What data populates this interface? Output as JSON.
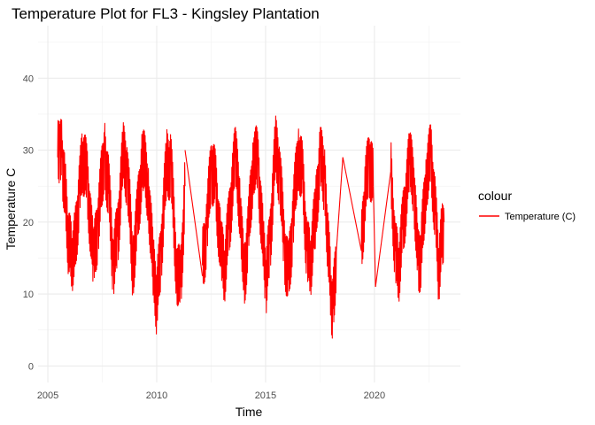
{
  "chart_data": {
    "type": "line",
    "title": "Temperature Plot for FL3 - Kingsley Plantation",
    "xlabel": "Time",
    "ylabel": "Temperature C",
    "xlim": [
      2004.55,
      2023.95
    ],
    "ylim": [
      -2.3,
      47.3
    ],
    "x_ticks": [
      2005,
      2010,
      2015,
      2020
    ],
    "y_ticks": [
      0,
      10,
      20,
      30,
      40
    ],
    "grid": true,
    "legend": {
      "title": "colour",
      "position": "right",
      "entries": [
        {
          "label": "Temperature (C)",
          "color": "#FF0000"
        }
      ]
    },
    "series": [
      {
        "name": "Temperature (C)",
        "color": "#FF0000",
        "daily_fluctuation_c": 5,
        "segments": [
          {
            "x": [
              2005.45,
              2005.55,
              2005.65,
              2005.8,
              2005.95,
              2006.1,
              2006.25,
              2006.45,
              2006.6,
              2006.8,
              2007.1,
              2007.3,
              2007.6,
              2007.8,
              2008.0,
              2008.2,
              2008.45,
              2008.65,
              2008.9,
              2009.1,
              2009.35,
              2009.6,
              2009.85,
              2010.0,
              2010.2,
              2010.45,
              2010.65,
              2010.9,
              2011.1,
              2011.3
            ],
            "y": [
              29,
              30,
              29,
              24,
              17,
              15,
              17,
              24,
              29,
              26,
              14,
              20,
              30,
              24,
              14,
              18,
              29,
              27,
              14,
              20,
              29,
              25,
              13,
              9,
              16,
              28,
              28,
              14,
              11,
              25
            ]
          },
          {
            "x": [
              2011.3,
              2012.1
            ],
            "y": [
              30,
              12.5
            ]
          },
          {
            "x": [
              2012.1,
              2012.3,
              2012.5,
              2012.7,
              2012.95,
              2013.1,
              2013.3,
              2013.6,
              2013.85,
              2014.0,
              2014.2,
              2014.45,
              2014.65,
              2014.9,
              2015.0,
              2015.2,
              2015.45,
              2015.65,
              2015.85,
              2016.05,
              2016.25,
              2016.5,
              2016.7,
              2016.9,
              2017.05,
              2017.3,
              2017.5,
              2017.7
            ],
            "y": [
              14,
              19,
              28,
              25,
              16,
              13,
              19,
              29,
              22,
              12,
              18,
              29,
              28,
              16,
              11,
              17,
              30,
              27,
              17,
              12,
              20,
              30,
              26,
              16,
              14,
              21,
              29,
              26
            ]
          },
          {
            "x": [
              2017.7,
              2017.85,
              2018.0,
              2018.1,
              2018.25
            ],
            "y": [
              26,
              18,
              10,
              8,
              16
            ]
          },
          {
            "x": [
              2018.25,
              2018.55
            ],
            "y": [
              16,
              29
            ]
          },
          {
            "x": [
              2018.55,
              2019.4
            ],
            "y": [
              29,
              16
            ]
          },
          {
            "x": [
              2019.4,
              2019.55,
              2019.75,
              2019.95
            ],
            "y": [
              16,
              23,
              29,
              25
            ]
          },
          {
            "x": [
              2019.95,
              2020.05
            ],
            "y": [
              25,
              11
            ]
          },
          {
            "x": [
              2020.05,
              2020.75
            ],
            "y": [
              11,
              27
            ]
          },
          {
            "x": [
              2020.75,
              2020.95,
              2021.1,
              2021.3,
              2021.6,
              2021.8,
              2022.0,
              2022.15,
              2022.4,
              2022.6,
              2022.8,
              2022.95,
              2023.1,
              2023.2
            ],
            "y": [
              27,
              16,
              13,
              19,
              28,
              26,
              14,
              16,
              27,
              29,
              21,
              13,
              18,
              20
            ]
          }
        ]
      }
    ]
  }
}
